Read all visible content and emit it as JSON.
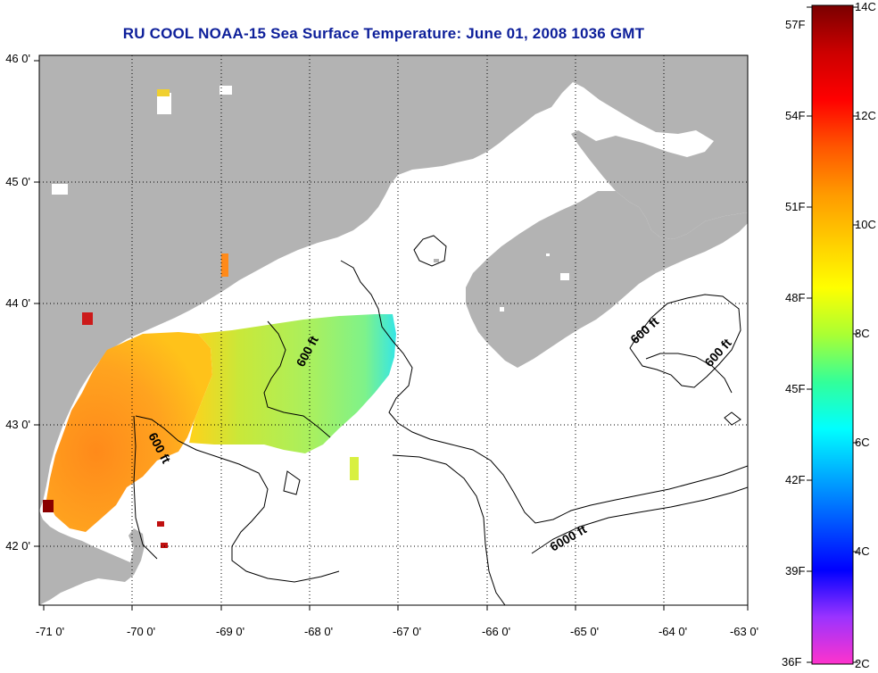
{
  "title": "RU COOL  NOAA-15  Sea Surface Temperature:  June 01, 2008 1036 GMT",
  "map": {
    "lon_labels": [
      "-71 0'",
      "-70 0'",
      "-69 0'",
      "-68 0'",
      "-67 0'",
      "-66 0'",
      "-65 0'",
      "-64 0'",
      "-63 0'"
    ],
    "lat_labels": [
      "46 0'",
      "45 0'",
      "44 0'",
      "43 0'",
      "42 0'"
    ],
    "contour_labels": [
      "600 ft",
      "600 ft",
      "600 ft",
      "600 ft",
      "6000 ft"
    ],
    "colors": {
      "land": "#b3b3b3",
      "ocean": "#ffffff",
      "grid": "#000000",
      "title": "#0d1f9a"
    }
  },
  "colorbar": {
    "left_labels": [
      "57F",
      "54F",
      "51F",
      "48F",
      "45F",
      "42F",
      "39F",
      "36F"
    ],
    "right_labels": [
      "14C",
      "12C",
      "10C",
      "8C",
      "6C",
      "4C",
      "2C"
    ],
    "gradient": [
      "#ff33cc",
      "#9a33ff",
      "#0000ff",
      "#0055ff",
      "#00aaff",
      "#00ffff",
      "#33ff99",
      "#aaff33",
      "#ffff00",
      "#ffcc00",
      "#ff9900",
      "#ff5500",
      "#ff0000",
      "#cc0000",
      "#7a0000"
    ]
  }
}
